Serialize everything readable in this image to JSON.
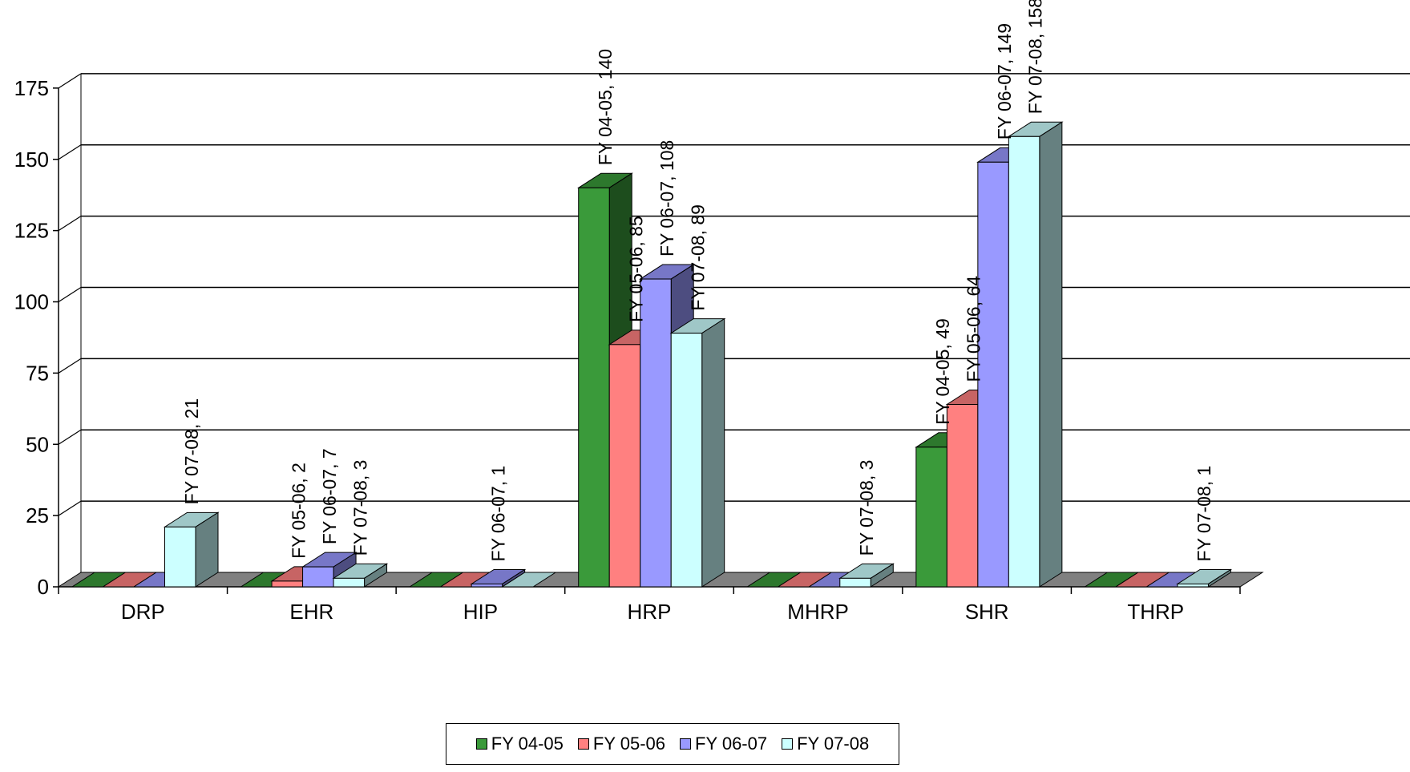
{
  "chart_data": {
    "type": "bar",
    "style": "3d-clustered-column",
    "categories": [
      "DRP",
      "EHR",
      "HIP",
      "HRP",
      "MHRP",
      "SHR",
      "THRP"
    ],
    "series": [
      {
        "name": "FY 04-05",
        "color": "#3a9a3a",
        "values": [
          0,
          0,
          0,
          140,
          0,
          49,
          0
        ]
      },
      {
        "name": "FY 05-06",
        "color": "#ff8080",
        "values": [
          0,
          2,
          0,
          85,
          0,
          64,
          0
        ]
      },
      {
        "name": "FY 06-07",
        "color": "#9999ff",
        "values": [
          0,
          7,
          1,
          108,
          0,
          149,
          0
        ]
      },
      {
        "name": "FY 07-08",
        "color": "#ccffff",
        "values": [
          21,
          3,
          0,
          89,
          3,
          158,
          1
        ]
      }
    ],
    "data_labels": [
      {
        "category": "DRP",
        "series": "FY 07-08",
        "text": "FY 07-08, 21"
      },
      {
        "category": "EHR",
        "series": "FY 05-06",
        "text": "FY 05-06, 2"
      },
      {
        "category": "EHR",
        "series": "FY 06-07",
        "text": "FY 06-07, 7"
      },
      {
        "category": "EHR",
        "series": "FY 07-08",
        "text": "FY 07-08, 3"
      },
      {
        "category": "HIP",
        "series": "FY 06-07",
        "text": "FY 06-07, 1"
      },
      {
        "category": "HRP",
        "series": "FY 04-05",
        "text": "FY 04-05, 140"
      },
      {
        "category": "HRP",
        "series": "FY 05-06",
        "text": "FY 05-06, 85"
      },
      {
        "category": "HRP",
        "series": "FY 06-07",
        "text": "FY 06-07, 108"
      },
      {
        "category": "HRP",
        "series": "FY 07-08",
        "text": "FY 07-08, 89"
      },
      {
        "category": "MHRP",
        "series": "FY 07-08",
        "text": "FY 07-08, 3"
      },
      {
        "category": "SHR",
        "series": "FY 04-05",
        "text": "FY 04-05, 49"
      },
      {
        "category": "SHR",
        "series": "FY 05-06",
        "text": "FY 05-06, 64"
      },
      {
        "category": "SHR",
        "series": "FY 06-07",
        "text": "FY 06-07, 149"
      },
      {
        "category": "SHR",
        "series": "FY 07-08",
        "text": "FY 07-08, 158"
      },
      {
        "category": "THRP",
        "series": "FY 07-08",
        "text": "FY 07-08, 1"
      }
    ],
    "yticks": [
      "0",
      "25",
      "50",
      "75",
      "100",
      "125",
      "150",
      "175"
    ],
    "ylim": [
      0,
      175
    ],
    "grid": true,
    "legend_position": "bottom",
    "wall_color": "#ffffff",
    "floor_color": "#808080"
  }
}
